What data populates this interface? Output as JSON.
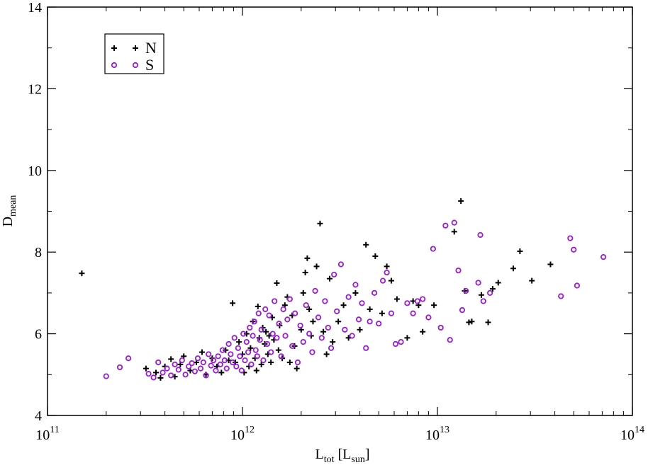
{
  "chart_data": {
    "type": "scatter",
    "title": "",
    "xlabel": {
      "main": "L",
      "sub1": "tot",
      "mid": " [L",
      "sub2": "sun",
      "end": "]"
    },
    "ylabel": {
      "main": "D",
      "sub": "mean"
    },
    "xscale": "log",
    "xlim": [
      100000000000.0,
      100000000000000.0
    ],
    "ylim": [
      4,
      14
    ],
    "x_ticks": [
      {
        "value": 100000000000.0,
        "base": "10",
        "exp": "11"
      },
      {
        "value": 1000000000000.0,
        "base": "10",
        "exp": "12"
      },
      {
        "value": 10000000000000.0,
        "base": "10",
        "exp": "13"
      },
      {
        "value": 100000000000000.0,
        "base": "10",
        "exp": "14"
      }
    ],
    "y_ticks": [
      4,
      6,
      8,
      10,
      12,
      14
    ],
    "legend_position": "top-left",
    "grid": false,
    "series": [
      {
        "name": "N",
        "marker": "plus",
        "color": "#000000",
        "points": [
          [
            150000000000.0,
            7.48
          ],
          [
            320000000000.0,
            5.15
          ],
          [
            360000000000.0,
            5.05
          ],
          [
            380000000000.0,
            4.92
          ],
          [
            400000000000.0,
            5.2
          ],
          [
            430000000000.0,
            5.38
          ],
          [
            450000000000.0,
            4.95
          ],
          [
            480000000000.0,
            5.25
          ],
          [
            500000000000.0,
            5.45
          ],
          [
            540000000000.0,
            5.1
          ],
          [
            580000000000.0,
            5.3
          ],
          [
            620000000000.0,
            5.55
          ],
          [
            650000000000.0,
            5.0
          ],
          [
            700000000000.0,
            5.4
          ],
          [
            740000000000.0,
            5.2
          ],
          [
            780000000000.0,
            5.05
          ],
          [
            820000000000.0,
            5.6
          ],
          [
            850000000000.0,
            5.35
          ],
          [
            890000000000.0,
            6.75
          ],
          [
            920000000000.0,
            5.3
          ],
          [
            960000000000.0,
            5.8
          ],
          [
            1000000000000.0,
            5.5
          ],
          [
            1020000000000.0,
            5.05
          ],
          [
            1050000000000.0,
            6.0
          ],
          [
            1080000000000.0,
            5.2
          ],
          [
            1100000000000.0,
            5.65
          ],
          [
            1130000000000.0,
            6.3
          ],
          [
            1160000000000.0,
            5.4
          ],
          [
            1180000000000.0,
            5.1
          ],
          [
            1200000000000.0,
            6.67
          ],
          [
            1220000000000.0,
            5.9
          ],
          [
            1250000000000.0,
            5.25
          ],
          [
            1270000000000.0,
            6.15
          ],
          [
            1300000000000.0,
            5.75
          ],
          [
            1320000000000.0,
            6.05
          ],
          [
            1350000000000.0,
            5.5
          ],
          [
            1370000000000.0,
            5.95
          ],
          [
            1400000000000.0,
            5.3
          ],
          [
            1420000000000.0,
            6.4
          ],
          [
            1450000000000.0,
            5.85
          ],
          [
            1500000000000.0,
            7.24
          ],
          [
            1530000000000.0,
            5.6
          ],
          [
            1550000000000.0,
            6.2
          ],
          [
            1600000000000.0,
            5.4
          ],
          [
            1650000000000.0,
            6.7
          ],
          [
            1700000000000.0,
            6.9
          ],
          [
            1750000000000.0,
            5.3
          ],
          [
            1800000000000.0,
            6.45
          ],
          [
            1850000000000.0,
            5.7
          ],
          [
            1900000000000.0,
            5.15
          ],
          [
            2000000000000.0,
            6.1
          ],
          [
            2050000000000.0,
            7.0
          ],
          [
            2100000000000.0,
            7.5
          ],
          [
            2150000000000.0,
            7.85
          ],
          [
            2200000000000.0,
            6.6
          ],
          [
            2250000000000.0,
            5.95
          ],
          [
            2300000000000.0,
            6.3
          ],
          [
            2400000000000.0,
            7.65
          ],
          [
            2500000000000.0,
            8.7
          ],
          [
            2600000000000.0,
            6.05
          ],
          [
            2700000000000.0,
            5.5
          ],
          [
            2800000000000.0,
            7.35
          ],
          [
            2900000000000.0,
            5.8
          ],
          [
            3100000000000.0,
            6.3
          ],
          [
            3300000000000.0,
            6.7
          ],
          [
            3500000000000.0,
            5.9
          ],
          [
            3800000000000.0,
            7.0
          ],
          [
            4000000000000.0,
            6.1
          ],
          [
            4300000000000.0,
            8.18
          ],
          [
            4500000000000.0,
            6.6
          ],
          [
            4800000000000.0,
            7.9
          ],
          [
            5200000000000.0,
            6.5
          ],
          [
            5500000000000.0,
            7.65
          ],
          [
            5800000000000.0,
            7.3
          ],
          [
            6200000000000.0,
            6.85
          ],
          [
            7000000000000.0,
            5.9
          ],
          [
            7500000000000.0,
            6.8
          ],
          [
            8000000000000.0,
            6.7
          ],
          [
            8400000000000.0,
            6.05
          ],
          [
            9600000000000.0,
            6.7
          ],
          [
            12200000000000.0,
            8.5
          ],
          [
            13200000000000.0,
            9.25
          ],
          [
            13800000000000.0,
            7.05
          ],
          [
            14500000000000.0,
            6.28
          ],
          [
            15000000000000.0,
            6.3
          ],
          [
            16800000000000.0,
            6.95
          ],
          [
            18200000000000.0,
            6.28
          ],
          [
            19200000000000.0,
            7.1
          ],
          [
            20500000000000.0,
            7.25
          ],
          [
            24500000000000.0,
            7.6
          ],
          [
            26500000000000.0,
            8.02
          ],
          [
            30500000000000.0,
            7.3
          ],
          [
            38000000000000.0,
            7.7
          ]
        ]
      },
      {
        "name": "S",
        "marker": "circle",
        "color": "#9a1bd0",
        "points": [
          [
            200000000000.0,
            4.96
          ],
          [
            235000000000.0,
            5.18
          ],
          [
            260000000000.0,
            5.4
          ],
          [
            330000000000.0,
            5.02
          ],
          [
            350000000000.0,
            4.93
          ],
          [
            370000000000.0,
            5.3
          ],
          [
            390000000000.0,
            5.05
          ],
          [
            410000000000.0,
            5.15
          ],
          [
            430000000000.0,
            4.98
          ],
          [
            450000000000.0,
            5.25
          ],
          [
            470000000000.0,
            5.12
          ],
          [
            490000000000.0,
            5.35
          ],
          [
            510000000000.0,
            5.0
          ],
          [
            530000000000.0,
            5.2
          ],
          [
            550000000000.0,
            5.28
          ],
          [
            570000000000.0,
            5.08
          ],
          [
            590000000000.0,
            5.4
          ],
          [
            610000000000.0,
            5.15
          ],
          [
            630000000000.0,
            5.3
          ],
          [
            650000000000.0,
            4.98
          ],
          [
            670000000000.0,
            5.5
          ],
          [
            690000000000.0,
            5.22
          ],
          [
            710000000000.0,
            5.35
          ],
          [
            730000000000.0,
            5.1
          ],
          [
            750000000000.0,
            5.45
          ],
          [
            770000000000.0,
            5.25
          ],
          [
            790000000000.0,
            5.6
          ],
          [
            810000000000.0,
            5.35
          ],
          [
            830000000000.0,
            5.15
          ],
          [
            850000000000.0,
            5.75
          ],
          [
            870000000000.0,
            5.5
          ],
          [
            890000000000.0,
            5.3
          ],
          [
            910000000000.0,
            5.9
          ],
          [
            930000000000.0,
            5.2
          ],
          [
            950000000000.0,
            5.65
          ],
          [
            970000000000.0,
            5.45
          ],
          [
            990000000000.0,
            5.1
          ],
          [
            1010000000000.0,
            6.0
          ],
          [
            1030000000000.0,
            5.35
          ],
          [
            1050000000000.0,
            5.8
          ],
          [
            1070000000000.0,
            5.55
          ],
          [
            1090000000000.0,
            6.15
          ],
          [
            1110000000000.0,
            5.25
          ],
          [
            1130000000000.0,
            5.95
          ],
          [
            1150000000000.0,
            6.3
          ],
          [
            1170000000000.0,
            5.6
          ],
          [
            1190000000000.0,
            5.45
          ],
          [
            1210000000000.0,
            6.5
          ],
          [
            1230000000000.0,
            5.85
          ],
          [
            1250000000000.0,
            6.1
          ],
          [
            1280000000000.0,
            5.35
          ],
          [
            1310000000000.0,
            6.6
          ],
          [
            1340000000000.0,
            5.75
          ],
          [
            1370000000000.0,
            6.45
          ],
          [
            1400000000000.0,
            5.55
          ],
          [
            1430000000000.0,
            6.0
          ],
          [
            1460000000000.0,
            6.8
          ],
          [
            1500000000000.0,
            5.9
          ],
          [
            1540000000000.0,
            6.25
          ],
          [
            1580000000000.0,
            5.45
          ],
          [
            1620000000000.0,
            6.6
          ],
          [
            1660000000000.0,
            5.95
          ],
          [
            1700000000000.0,
            6.35
          ],
          [
            1750000000000.0,
            6.85
          ],
          [
            1800000000000.0,
            5.7
          ],
          [
            1860000000000.0,
            6.5
          ],
          [
            1920000000000.0,
            5.3
          ],
          [
            1980000000000.0,
            6.2
          ],
          [
            2050000000000.0,
            5.8
          ],
          [
            2120000000000.0,
            6.7
          ],
          [
            2200000000000.0,
            6.0
          ],
          [
            2280000000000.0,
            5.55
          ],
          [
            2360000000000.0,
            7.05
          ],
          [
            2450000000000.0,
            6.4
          ],
          [
            2550000000000.0,
            5.9
          ],
          [
            2650000000000.0,
            6.8
          ],
          [
            2750000000000.0,
            6.15
          ],
          [
            2850000000000.0,
            5.65
          ],
          [
            2950000000000.0,
            7.45
          ],
          [
            3050000000000.0,
            6.55
          ],
          [
            3200000000000.0,
            7.7
          ],
          [
            3350000000000.0,
            6.1
          ],
          [
            3500000000000.0,
            6.9
          ],
          [
            3650000000000.0,
            5.95
          ],
          [
            3800000000000.0,
            7.2
          ],
          [
            3950000000000.0,
            6.35
          ],
          [
            4100000000000.0,
            6.75
          ],
          [
            4300000000000.0,
            5.65
          ],
          [
            4500000000000.0,
            6.3
          ],
          [
            4750000000000.0,
            7.0
          ],
          [
            5000000000000.0,
            6.25
          ],
          [
            5250000000000.0,
            7.3
          ],
          [
            5500000000000.0,
            7.5
          ],
          [
            5800000000000.0,
            6.5
          ],
          [
            6100000000000.0,
            5.75
          ],
          [
            6500000000000.0,
            5.8
          ],
          [
            7000000000000.0,
            6.75
          ],
          [
            7500000000000.0,
            6.5
          ],
          [
            7900000000000.0,
            6.8
          ],
          [
            8400000000000.0,
            6.85
          ],
          [
            9000000000000.0,
            6.4
          ],
          [
            9500000000000.0,
            8.08
          ],
          [
            10400000000000.0,
            6.15
          ],
          [
            11000000000000.0,
            8.65
          ],
          [
            11600000000000.0,
            5.85
          ],
          [
            12200000000000.0,
            8.72
          ],
          [
            12800000000000.0,
            7.55
          ],
          [
            13400000000000.0,
            6.58
          ],
          [
            14000000000000.0,
            7.05
          ],
          [
            16200000000000.0,
            7.25
          ],
          [
            16600000000000.0,
            8.42
          ],
          [
            17200000000000.0,
            6.8
          ],
          [
            18600000000000.0,
            7.0
          ],
          [
            43000000000000.0,
            6.92
          ],
          [
            48000000000000.0,
            8.34
          ],
          [
            50000000000000.0,
            8.06
          ],
          [
            52000000000000.0,
            7.18
          ],
          [
            71000000000000.0,
            7.88
          ]
        ]
      }
    ]
  }
}
